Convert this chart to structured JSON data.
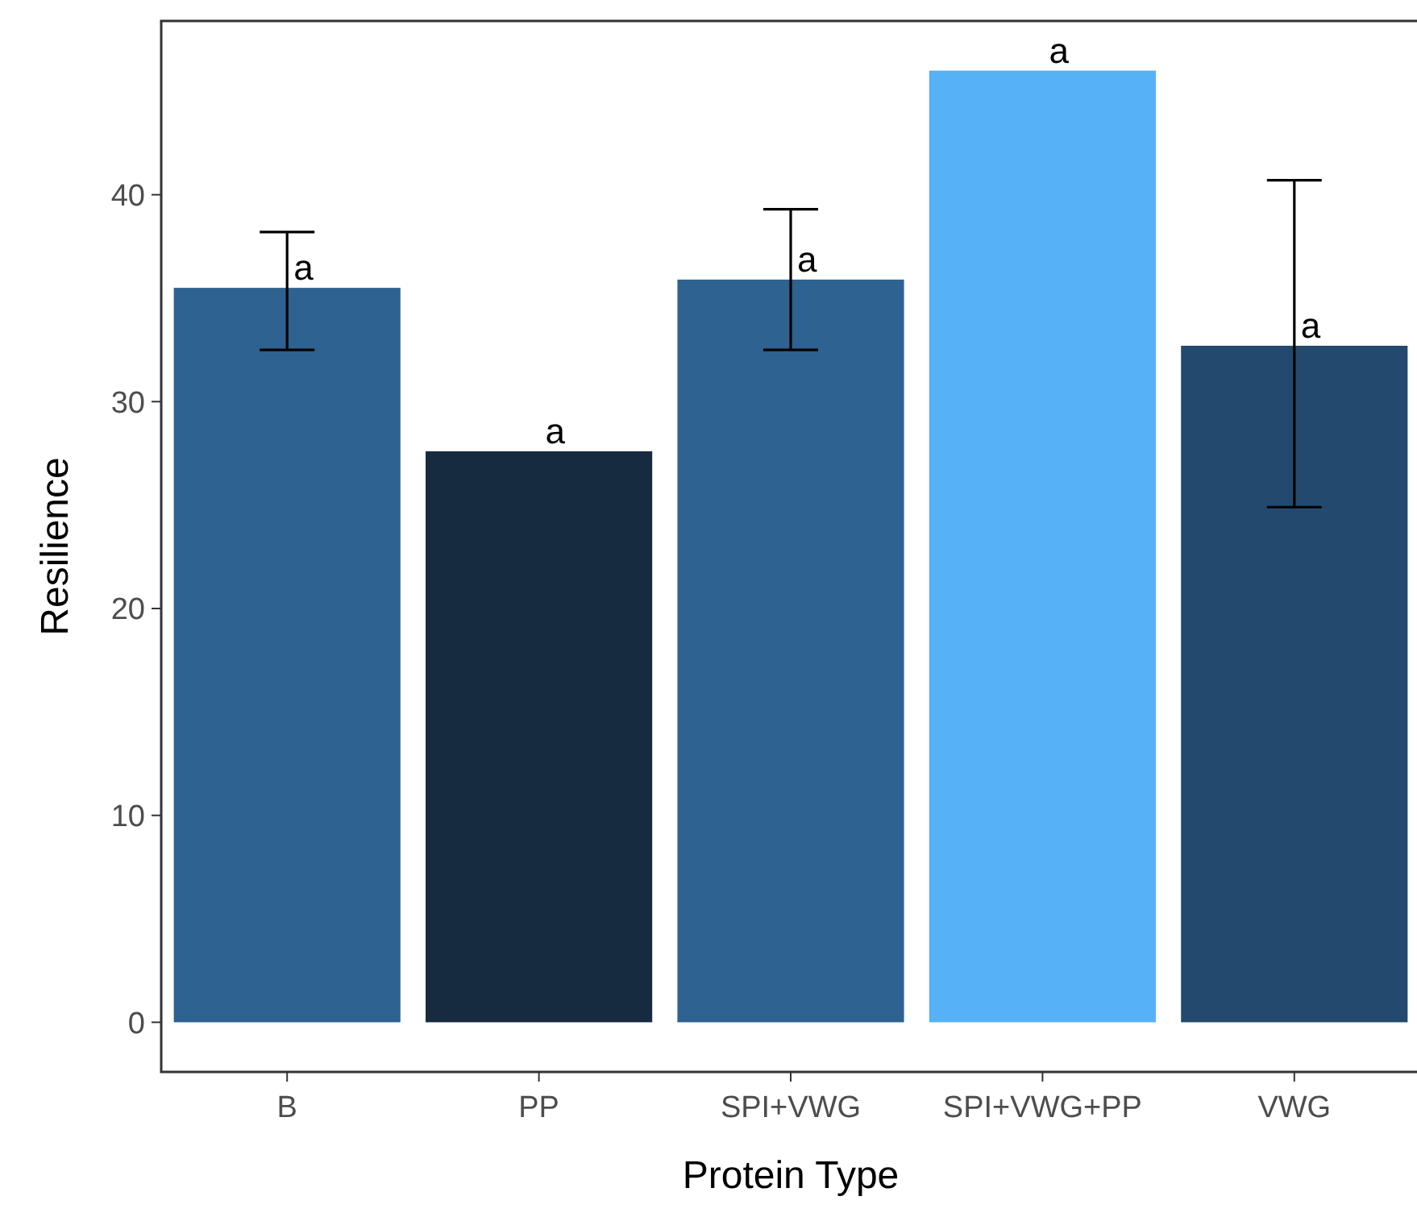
{
  "chart_data": {
    "type": "bar",
    "xlabel": "Protein Type",
    "ylabel": "Resilience",
    "categories": [
      "B",
      "PP",
      "SPI+VWG",
      "SPI+VWG+PP",
      "VWG"
    ],
    "values": [
      35.5,
      27.6,
      35.9,
      46.0,
      32.7
    ],
    "colors": [
      "#2e6291",
      "#172b40",
      "#2e6291",
      "#56b1f7",
      "#234a6e"
    ],
    "errors": [
      [
        32.5,
        38.2
      ],
      null,
      [
        32.5,
        39.3
      ],
      null,
      [
        24.9,
        40.7
      ]
    ],
    "ylim": [
      -2.4,
      48.4
    ],
    "yticks": [
      0,
      10,
      20,
      30,
      40
    ],
    "grid": false,
    "annotations": [
      {
        "text": "a",
        "x": "B",
        "y": 35.5
      },
      {
        "text": "a",
        "x": "PP",
        "y": 27.6
      },
      {
        "text": "a",
        "x": "SPI+VWG",
        "y": 35.9
      },
      {
        "text": "a",
        "x": "SPI+VWG+PP",
        "y": 46.0
      },
      {
        "text": "a",
        "x": "VWG",
        "y": 32.7
      }
    ]
  }
}
